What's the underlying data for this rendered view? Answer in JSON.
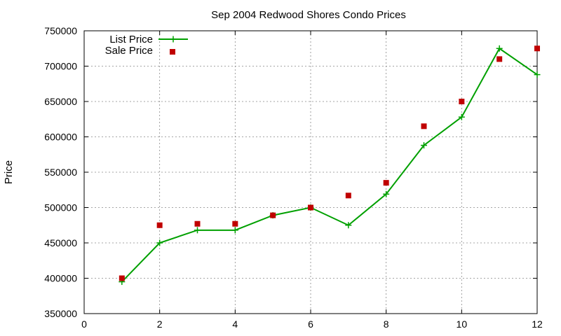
{
  "chart_data": {
    "type": "line",
    "title": "Sep 2004 Redwood Shores Condo Prices",
    "xlabel": "",
    "ylabel": "Price",
    "xlim": [
      0,
      12
    ],
    "ylim": [
      350000,
      750000
    ],
    "x_ticks": [
      0,
      2,
      4,
      6,
      8,
      10,
      12
    ],
    "y_ticks": [
      350000,
      400000,
      450000,
      500000,
      550000,
      600000,
      650000,
      700000,
      750000
    ],
    "grid": true,
    "legend_position": "top-left",
    "series": [
      {
        "name": "List Price",
        "kind": "line+cross",
        "color": "#00a000",
        "x": [
          1,
          2,
          3,
          4,
          5,
          6,
          7,
          8,
          9,
          10,
          11,
          12
        ],
        "y": [
          395000,
          450000,
          468000,
          468000,
          489000,
          500000,
          475000,
          519000,
          588000,
          628000,
          725000,
          688000
        ]
      },
      {
        "name": "Sale Price",
        "kind": "square-points",
        "color": "#c00000",
        "x": [
          1,
          2,
          3,
          4,
          5,
          6,
          7,
          8,
          9,
          10,
          11,
          12
        ],
        "y": [
          400000,
          475000,
          477000,
          477000,
          489000,
          500000,
          517000,
          535000,
          615000,
          650000,
          710000,
          725000
        ]
      }
    ]
  }
}
